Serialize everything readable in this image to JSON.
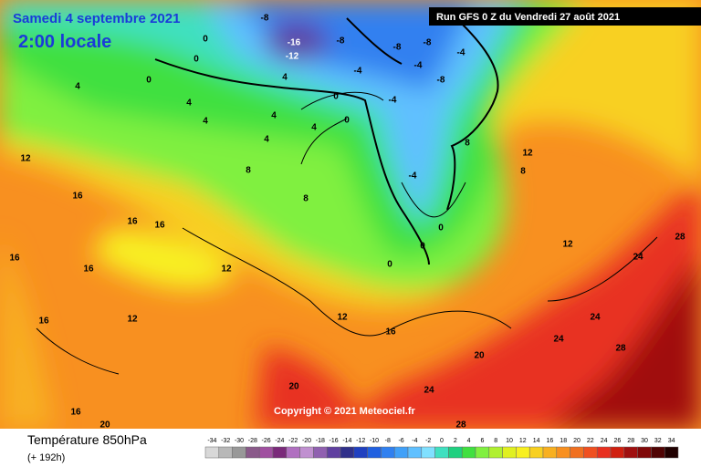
{
  "header": {
    "date": "Samedi 4 septembre 2021",
    "time": "2:00 locale",
    "run": "Run GFS 0 Z du Vendredi 27 août 2021"
  },
  "copyright": "Copyright © 2021 Meteociel.fr",
  "footer": {
    "title": "Température 850hPa",
    "lead": "(+ 192h)"
  },
  "scale": {
    "labels": [
      -34,
      -32,
      -30,
      -28,
      -26,
      -24,
      -22,
      -20,
      -18,
      -16,
      -14,
      -12,
      -10,
      -8,
      -6,
      -4,
      -2,
      0,
      2,
      4,
      6,
      8,
      10,
      12,
      14,
      16,
      18,
      20,
      22,
      24,
      26,
      28,
      30,
      32,
      34
    ],
    "colors": [
      "#d8d8d8",
      "#b8b8b8",
      "#989898",
      "#8a5a8a",
      "#a050a0",
      "#7a2a7a",
      "#b070c0",
      "#c090d0",
      "#9060b0",
      "#6040a0",
      "#30308a",
      "#2040c0",
      "#2060e0",
      "#3080f0",
      "#40a0f8",
      "#60c0ff",
      "#80e0ff",
      "#40e0c0",
      "#20d080",
      "#40e040",
      "#80f040",
      "#b0f030",
      "#e0f020",
      "#f8f020",
      "#f8d020",
      "#f8b020",
      "#f89020",
      "#f07020",
      "#f05020",
      "#e83020",
      "#d02010",
      "#a01010",
      "#800808",
      "#500404",
      "#200000"
    ]
  },
  "map_labels": [
    -16,
    -12,
    -8,
    -8,
    -8,
    -8,
    -8,
    -4,
    -4,
    -4,
    -4,
    -4,
    0,
    0,
    0,
    0,
    0,
    0,
    0,
    0,
    4,
    4,
    4,
    4,
    4,
    4,
    4,
    8,
    8,
    8,
    8,
    12,
    12,
    12,
    12,
    12,
    12,
    16,
    16,
    16,
    16,
    16,
    16,
    16,
    16,
    20,
    20,
    20,
    24,
    24,
    24,
    24,
    28,
    28,
    28
  ]
}
